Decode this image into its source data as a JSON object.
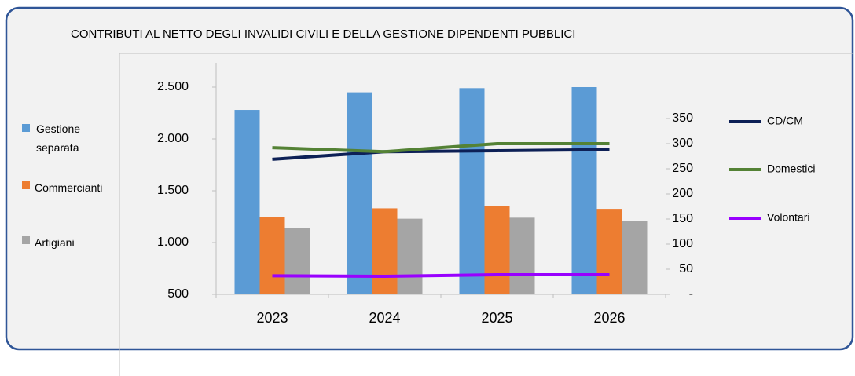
{
  "chart_data": {
    "type": "bar_line",
    "title": "CONTRIBUTI AL NETTO DEGLI INVALIDI CIVILI E DELLA GESTIONE DIPENDENTI PUBBLICI",
    "categories": [
      "2023",
      "2024",
      "2025",
      "2026"
    ],
    "series": [
      {
        "name": "Gestione separata",
        "type": "bar",
        "color": "#5b9bd5",
        "values": [
          2280,
          2450,
          2490,
          2500
        ]
      },
      {
        "name": "Commercianti",
        "type": "bar",
        "color": "#ed7d31",
        "values": [
          1250,
          1330,
          1350,
          1325
        ]
      },
      {
        "name": "Artigiani",
        "type": "bar",
        "color": "#a5a5a5",
        "values": [
          1140,
          1230,
          1240,
          1205
        ]
      },
      {
        "name": "CD/CM",
        "type": "line",
        "axis": "y2",
        "color": "#0d2056",
        "values": [
          269,
          284,
          286,
          288
        ]
      },
      {
        "name": "Domestici",
        "type": "line",
        "axis": "y2",
        "color": "#548235",
        "values": [
          292,
          284,
          300,
          300
        ]
      },
      {
        "name": "Volontari",
        "type": "line",
        "axis": "y2",
        "color": "#9900ff",
        "values": [
          37,
          36,
          39,
          39
        ]
      }
    ],
    "ylim": [
      500,
      2500
    ],
    "yticks": [
      {
        "value": 500,
        "label": "500"
      },
      {
        "value": 1000,
        "label": "1.000"
      },
      {
        "value": 1500,
        "label": "1.500"
      },
      {
        "value": 2000,
        "label": "2.000"
      },
      {
        "value": 2500,
        "label": "2.500"
      }
    ],
    "y2lim": [
      0,
      350
    ],
    "y2ticks": [
      {
        "value": 0,
        "label": "-"
      },
      50,
      100,
      150,
      200,
      250,
      300,
      350
    ]
  }
}
